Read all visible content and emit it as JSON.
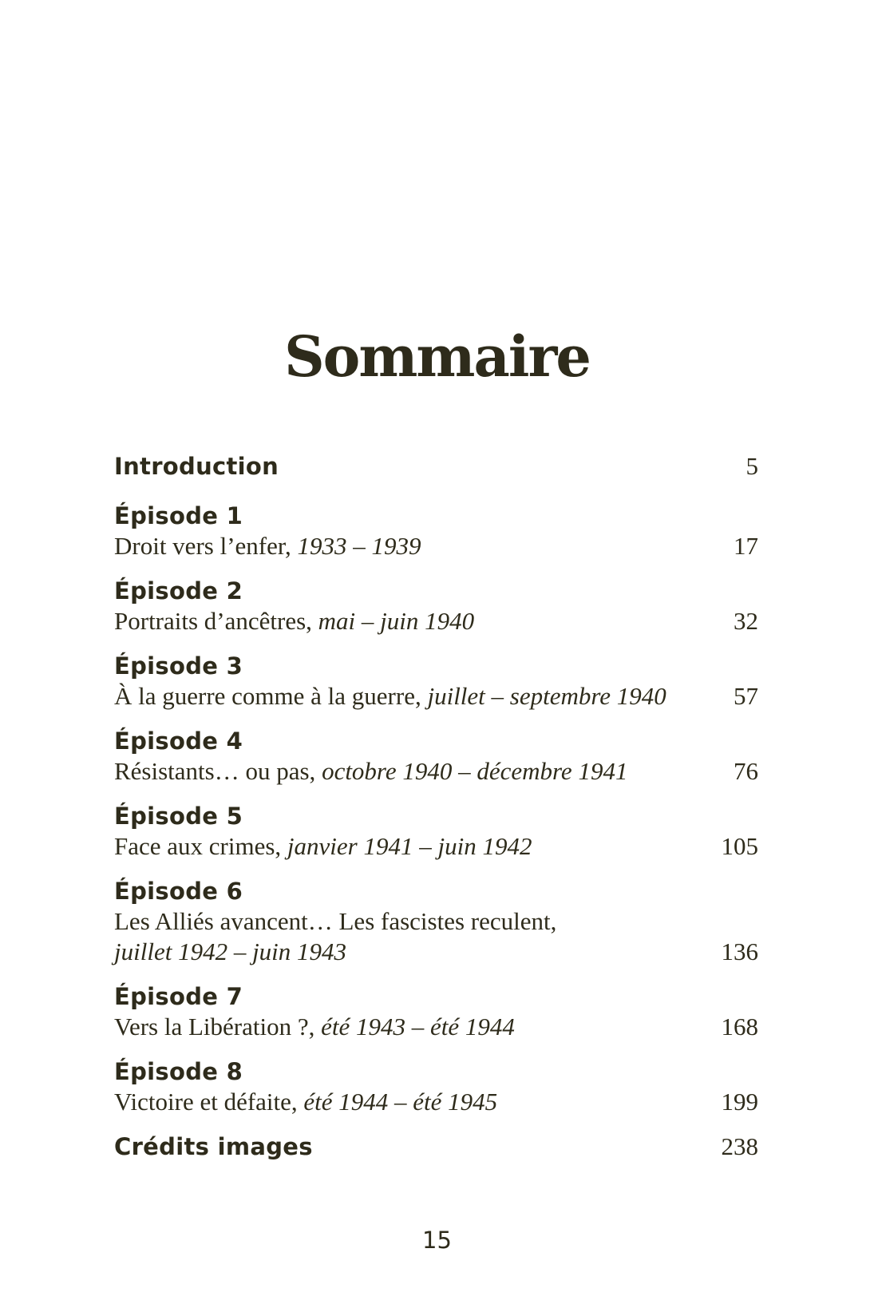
{
  "colors": {
    "ink": "#2e2b1b",
    "paper": "#ffffff"
  },
  "title": "Sommaire",
  "folio": "15",
  "entries": [
    {
      "type": "simple",
      "label": "Introduction",
      "page": "5"
    },
    {
      "type": "episode",
      "heading": "Épisode 1",
      "text": "Droit vers l’enfer, ",
      "dates": "1933 – 1939",
      "page": "17"
    },
    {
      "type": "episode",
      "heading": "Épisode 2",
      "text": "Portraits d’ancêtres, ",
      "dates": "mai – juin 1940",
      "page": "32"
    },
    {
      "type": "episode",
      "heading": "Épisode 3",
      "text": "À la guerre comme à la guerre, ",
      "dates": "juillet – septembre 1940",
      "page": "57"
    },
    {
      "type": "episode",
      "heading": "Épisode 4",
      "text": "Résistants… ou pas, ",
      "dates": "octobre 1940 – décembre 1941",
      "page": "76"
    },
    {
      "type": "episode",
      "heading": "Épisode 5",
      "text": "Face aux crimes, ",
      "dates": "janvier 1941 – juin 1942",
      "page": "105"
    },
    {
      "type": "episode-twoline",
      "heading": "Épisode 6",
      "text": "Les Alliés avancent… Les fascistes reculent,",
      "dates": "juillet 1942 – juin 1943",
      "page": "136"
    },
    {
      "type": "episode",
      "heading": "Épisode 7",
      "text": "Vers la Libération ?, ",
      "dates": "été 1943 – été 1944",
      "page": "168"
    },
    {
      "type": "episode",
      "heading": "Épisode 8",
      "text": "Victoire et défaite, ",
      "dates": "été 1944 – été 1945",
      "page": "199"
    },
    {
      "type": "simple",
      "label": "Crédits images",
      "page": "238"
    }
  ]
}
